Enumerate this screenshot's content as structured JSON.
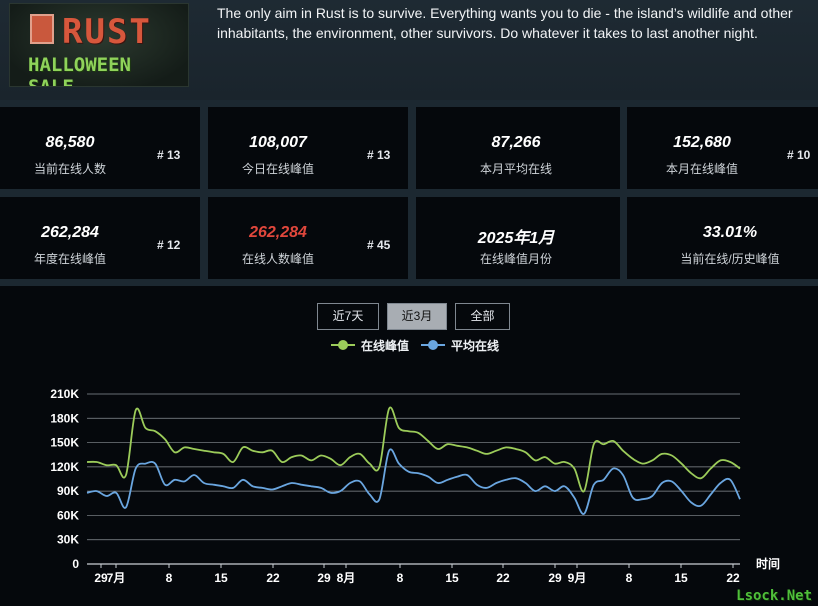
{
  "header": {
    "banner_title": "RUST",
    "banner_subtitle": "HALLOWEEN SALE",
    "description": "The only aim in Rust is to survive. Everything wants you to die - the island’s wildlife and other inhabitants, the environment, other survivors. Do whatever it takes to last another night."
  },
  "stats": [
    {
      "value": "86,580",
      "label": "当前在线人数",
      "rank": "# 13"
    },
    {
      "value": "108,007",
      "label": "今日在线峰值",
      "rank": "# 13"
    },
    {
      "value": "87,266",
      "label": "本月平均在线",
      "rank": ""
    },
    {
      "value": "152,680",
      "label": "本月在线峰值",
      "rank": "# 10"
    },
    {
      "value": "262,284",
      "label": "年度在线峰值",
      "rank": "# 12"
    },
    {
      "value": "262,284",
      "label": "在线人数峰值",
      "rank": "# 45"
    },
    {
      "value": "2025年1月",
      "label": "在线峰值月份",
      "rank": ""
    },
    {
      "value": "33.01%",
      "label": "当前在线/历史峰值",
      "rank": ""
    }
  ],
  "tabs": [
    {
      "label": "近7天",
      "active": false
    },
    {
      "label": "近3月",
      "active": true
    },
    {
      "label": "全部",
      "active": false
    }
  ],
  "colors": {
    "peak": "#9ccc5a",
    "avg": "#6aa6e0",
    "highlight_red": "#e0473c"
  },
  "chart_data": {
    "type": "line",
    "series": [
      {
        "name": "在线峰值",
        "color": "#9ccc5a",
        "values": [
          126,
          126,
          122,
          122,
          110,
          190,
          168,
          164,
          154,
          138,
          144,
          142,
          140,
          138,
          136,
          126,
          144,
          140,
          138,
          140,
          126,
          132,
          134,
          128,
          134,
          130,
          122,
          132,
          136,
          124,
          120,
          192,
          168,
          164,
          162,
          152,
          142,
          148,
          146,
          144,
          140,
          136,
          140,
          144,
          142,
          138,
          128,
          132,
          124,
          126,
          118,
          90,
          148,
          148,
          152,
          140,
          130,
          124,
          128,
          136,
          134,
          124,
          112,
          106,
          118,
          128,
          126,
          118
        ]
      },
      {
        "name": "平均在线",
        "color": "#6aa6e0",
        "values": [
          88,
          90,
          84,
          88,
          70,
          118,
          124,
          124,
          98,
          104,
          102,
          110,
          100,
          98,
          96,
          94,
          104,
          96,
          94,
          92,
          96,
          100,
          98,
          96,
          94,
          88,
          90,
          100,
          102,
          86,
          80,
          140,
          124,
          114,
          112,
          108,
          100,
          104,
          108,
          110,
          98,
          94,
          100,
          104,
          106,
          100,
          90,
          96,
          90,
          96,
          82,
          62,
          98,
          104,
          118,
          110,
          82,
          80,
          84,
          100,
          102,
          90,
          76,
          72,
          86,
          100,
          104,
          80
        ]
      }
    ],
    "x_tick_labels": [
      "29",
      "7月",
      "8",
      "15",
      "22",
      "29",
      "8月",
      "8",
      "15",
      "22",
      "29",
      "9月",
      "8",
      "15",
      "22"
    ],
    "xlabel": "时间",
    "y_tick_labels": [
      "0",
      "30K",
      "60K",
      "90K",
      "120K",
      "150K",
      "180K",
      "210K"
    ],
    "ylim": [
      0,
      210
    ],
    "grid": true,
    "legend": "top-center"
  },
  "watermark": "Lsock.Net"
}
